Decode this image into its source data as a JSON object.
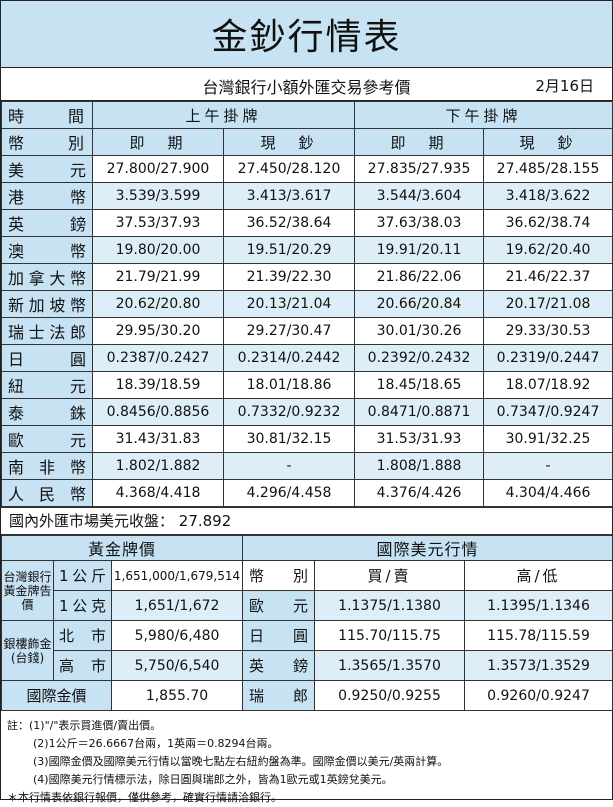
{
  "title": "金鈔行情表",
  "subtitle": "台灣銀行小額外匯交易參考價",
  "date": "2月16日",
  "headers": {
    "time": "時　　間",
    "currency": "幣　　別",
    "morning": "上午掛牌",
    "afternoon": "下午掛牌",
    "spot": "即　期",
    "cash": "現　鈔"
  },
  "rates": [
    {
      "currency": "美元",
      "am_spot": "27.800/27.900",
      "am_cash": "27.450/28.120",
      "pm_spot": "27.835/27.935",
      "pm_cash": "27.485/28.155"
    },
    {
      "currency": "港幣",
      "am_spot": "3.539/3.599",
      "am_cash": "3.413/3.617",
      "pm_spot": "3.544/3.604",
      "pm_cash": "3.418/3.622"
    },
    {
      "currency": "英鎊",
      "am_spot": "37.53/37.93",
      "am_cash": "36.52/38.64",
      "pm_spot": "37.63/38.03",
      "pm_cash": "36.62/38.74"
    },
    {
      "currency": "澳幣",
      "am_spot": "19.80/20.00",
      "am_cash": "19.51/20.29",
      "pm_spot": "19.91/20.11",
      "pm_cash": "19.62/20.40"
    },
    {
      "currency": "加拿大幣",
      "am_spot": "21.79/21.99",
      "am_cash": "21.39/22.30",
      "pm_spot": "21.86/22.06",
      "pm_cash": "21.46/22.37"
    },
    {
      "currency": "新加坡幣",
      "am_spot": "20.62/20.80",
      "am_cash": "20.13/21.04",
      "pm_spot": "20.66/20.84",
      "pm_cash": "20.17/21.08"
    },
    {
      "currency": "瑞士法郎",
      "am_spot": "29.95/30.20",
      "am_cash": "29.27/30.47",
      "pm_spot": "30.01/30.26",
      "pm_cash": "29.33/30.53"
    },
    {
      "currency": "日圓",
      "am_spot": "0.2387/0.2427",
      "am_cash": "0.2314/0.2442",
      "pm_spot": "0.2392/0.2432",
      "pm_cash": "0.2319/0.2447"
    },
    {
      "currency": "紐元",
      "am_spot": "18.39/18.59",
      "am_cash": "18.01/18.86",
      "pm_spot": "18.45/18.65",
      "pm_cash": "18.07/18.92"
    },
    {
      "currency": "泰銖",
      "am_spot": "0.8456/0.8856",
      "am_cash": "0.7332/0.9232",
      "pm_spot": "0.8471/0.8871",
      "pm_cash": "0.7347/0.9247"
    },
    {
      "currency": "歐元",
      "am_spot": "31.43/31.83",
      "am_cash": "30.81/32.15",
      "pm_spot": "31.53/31.93",
      "pm_cash": "30.91/32.25"
    },
    {
      "currency": "南非幣",
      "am_spot": "1.802/1.882",
      "am_cash": "-",
      "pm_spot": "1.808/1.888",
      "pm_cash": "-"
    },
    {
      "currency": "人民幣",
      "am_spot": "4.368/4.418",
      "am_cash": "4.296/4.458",
      "pm_spot": "4.376/4.426",
      "pm_cash": "4.304/4.466"
    }
  ],
  "domestic_close": "國內外匯市場美元收盤： 27.892",
  "gold": {
    "header": "黃金牌價",
    "bank_label": "台灣銀行黃金牌告價",
    "rows": [
      {
        "unit": "1公斤",
        "price": "1,651,000/1,679,514"
      },
      {
        "unit": "1公克",
        "price": "1,651/1,672"
      }
    ],
    "jewelry_label": "銀樓飾金(台錢)",
    "jewelry_rows": [
      {
        "city": "北市",
        "price": "5,980/6,480"
      },
      {
        "city": "高市",
        "price": "5,750/6,540"
      }
    ],
    "intl_label": "國際金價",
    "intl_price": "1,855.70"
  },
  "usd": {
    "header": "國際美元行情",
    "col_currency": "幣　別",
    "col_buy_sell": "買/賣",
    "col_high_low": "高/低",
    "rows": [
      {
        "currency": "歐元",
        "buy_sell": "1.1375/1.1380",
        "high_low": "1.1395/1.1346"
      },
      {
        "currency": "日圓",
        "buy_sell": "115.70/115.75",
        "high_low": "115.78/115.59"
      },
      {
        "currency": "英鎊",
        "buy_sell": "1.3565/1.3570",
        "high_low": "1.3573/1.3529"
      },
      {
        "currency": "瑞郎",
        "buy_sell": "0.9250/0.9255",
        "high_low": "0.9260/0.9247"
      }
    ]
  },
  "notes": [
    "註：(1)\"/\"表示買進價/賣出價。",
    "(2)1公斤＝26.6667台兩，1英兩＝0.8294台兩。",
    "(3)國際金價及國際美元行情以當晚七點左右紐約盤為準。國際金價以美元/英兩計算。",
    "(4)國際美元行情標示法，除日圓與瑞郎之外，皆為1歐元或1英鎊兌美元。",
    "＊本行情表依銀行報價，僅供參考，確實行情請洽銀行。"
  ]
}
